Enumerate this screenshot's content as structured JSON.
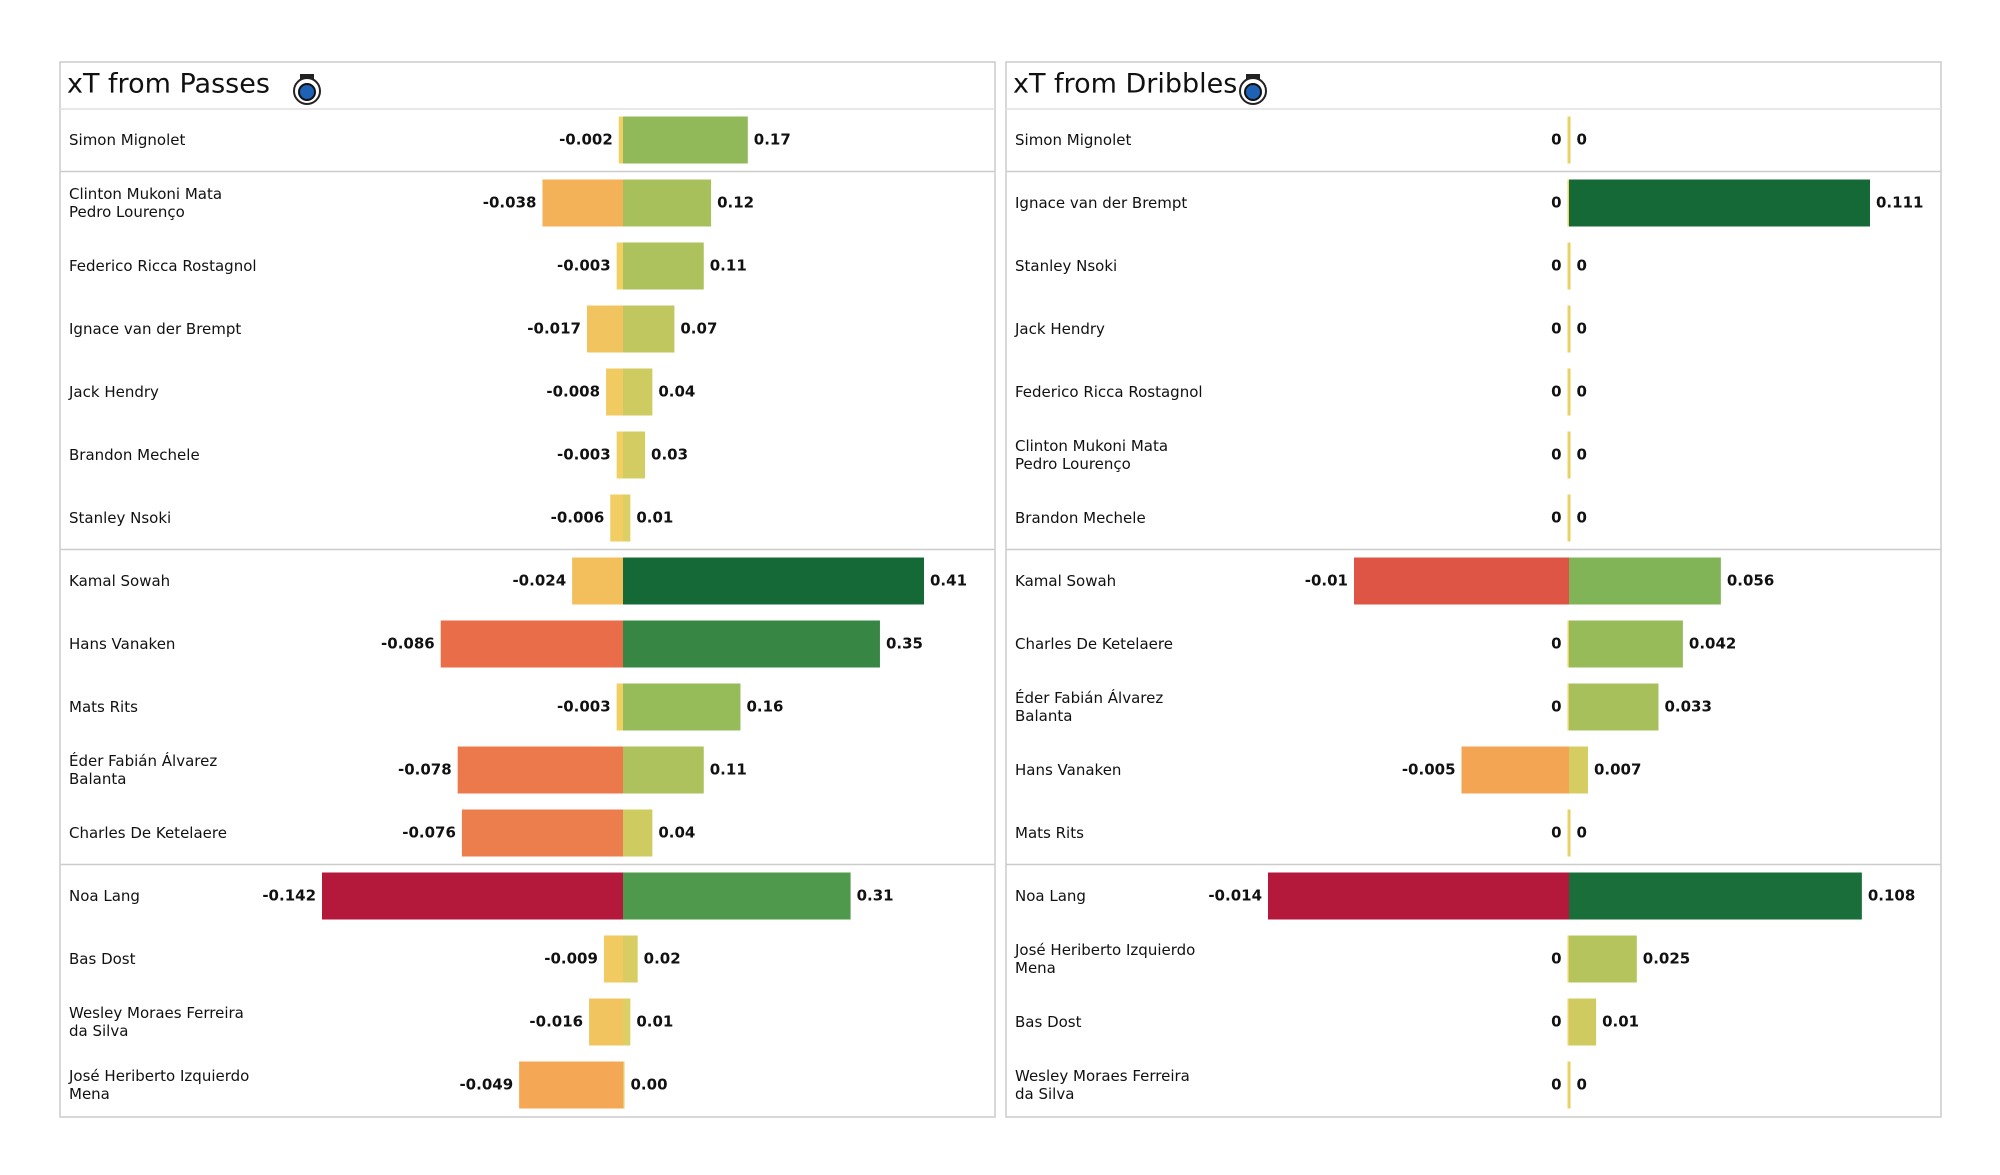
{
  "chart_data": [
    {
      "type": "diverging-bar",
      "title": "xT from Passes",
      "categories": [
        "Simon Mignolet",
        "Clinton Mukoni Mata\nPedro Lourenço",
        "Federico Ricca Rostagnol",
        "Ignace van der Brempt",
        "Jack Hendry",
        "Brandon Mechele",
        "Stanley Nsoki",
        "Kamal Sowah",
        "Hans Vanaken",
        "Mats Rits",
        "Éder Fabián Álvarez\nBalanta",
        "Charles De Ketelaere",
        "Noa Lang",
        "Bas Dost",
        "Wesley Moraes Ferreira\nda Silva",
        "José Heriberto Izquierdo\nMena"
      ],
      "series": [
        {
          "values": [
            -0.002,
            -0.038,
            -0.003,
            -0.017,
            -0.008,
            -0.003,
            -0.006,
            -0.024,
            -0.086,
            -0.003,
            -0.078,
            -0.076,
            -0.142,
            -0.009,
            -0.016,
            -0.049
          ]
        },
        {
          "values": [
            0.17,
            0.12,
            0.11,
            0.07,
            0.04,
            0.03,
            0.01,
            0.41,
            0.35,
            0.16,
            0.11,
            0.04,
            0.31,
            0.02,
            0.01,
            0
          ],
          "value_labels": [
            "0.17",
            "0.12",
            "0.11",
            "0.07",
            "0.04",
            "0.03",
            "0.01",
            "0.41",
            "0.35",
            "0.16",
            "0.11",
            "0.04",
            "0.31",
            "0.02",
            "0.01",
            "0.00"
          ]
        }
      ]
    },
    {
      "type": "diverging-bar",
      "title": "xT from Dribbles",
      "categories": [
        "Simon Mignolet",
        "Ignace van der Brempt",
        "Stanley Nsoki",
        "Jack Hendry",
        "Federico Ricca Rostagnol",
        "Clinton Mukoni Mata\nPedro Lourenço",
        "Brandon Mechele",
        "Kamal Sowah",
        "Charles De Ketelaere",
        "Éder Fabián Álvarez\nBalanta",
        "Hans Vanaken",
        "Mats Rits",
        "Noa Lang",
        "José Heriberto Izquierdo\nMena",
        "Bas Dost",
        "Wesley Moraes Ferreira\nda Silva"
      ],
      "series": [
        {
          "values": [
            0,
            0,
            0,
            0,
            0,
            0,
            0,
            -0.01,
            0,
            0,
            -0.005,
            0,
            -0.014,
            0,
            0,
            0
          ]
        },
        {
          "values": [
            0,
            0.111,
            0,
            0,
            0,
            0,
            0,
            0.056,
            0.042,
            0.033,
            0.007,
            0,
            0.108,
            0.025,
            0.01,
            0
          ]
        }
      ]
    }
  ]
}
